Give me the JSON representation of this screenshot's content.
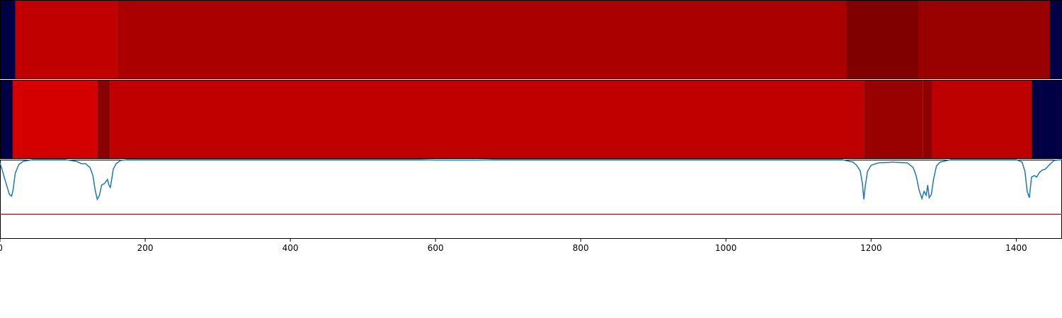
{
  "chart_data": [
    {
      "type": "heatmap",
      "xlim": [
        0,
        1463
      ],
      "edges": [
        0,
        21,
        161,
        1166,
        1265,
        1446,
        1463
      ],
      "colors": [
        "#000044",
        "#c00000",
        "#aa0000",
        "#800000",
        "#990000",
        "#000044"
      ]
    },
    {
      "type": "heatmap",
      "xlim": [
        0,
        1463
      ],
      "edges": [
        0,
        17.5,
        134,
        152,
        1190,
        1271,
        1284,
        1421,
        1463
      ],
      "colors": [
        "#000044",
        "#d40000",
        "#880000",
        "#c00000",
        "#990000",
        "#8f0000",
        "#bd0000",
        "#000044"
      ]
    },
    {
      "type": "line",
      "xlim": [
        0,
        1463
      ],
      "ylim": [
        0,
        1
      ],
      "xticks": [
        0,
        200,
        400,
        600,
        800,
        1000,
        1200,
        1400
      ],
      "hline": {
        "value": 0.31,
        "color": "#e41a1c"
      },
      "series": [
        {
          "color": "#1f77b4",
          "x": [
            0,
            3,
            8,
            13,
            16,
            18,
            21,
            26,
            32,
            45,
            90,
            105,
            112,
            118,
            124,
            128,
            131,
            134,
            137,
            140,
            144,
            148,
            150,
            152,
            154,
            156,
            160,
            166,
            175,
            580,
            600,
            660,
            680,
            1160,
            1175,
            1180,
            1185,
            1188,
            1190,
            1192,
            1195,
            1200,
            1210,
            1230,
            1250,
            1258,
            1262,
            1266,
            1270,
            1273,
            1276,
            1278,
            1280,
            1283,
            1286,
            1290,
            1295,
            1310,
            1400,
            1408,
            1412,
            1415,
            1418,
            1421,
            1425,
            1428,
            1432,
            1436,
            1440,
            1446,
            1452,
            1463
          ],
          "values": [
            0.96,
            0.87,
            0.71,
            0.56,
            0.54,
            0.62,
            0.83,
            0.94,
            0.98,
            1.0,
            1.0,
            0.98,
            0.95,
            0.95,
            0.9,
            0.8,
            0.62,
            0.5,
            0.55,
            0.68,
            0.7,
            0.75,
            0.68,
            0.65,
            0.76,
            0.88,
            0.95,
            0.99,
            1.0,
            1.0,
            0.995,
            0.995,
            1.0,
            1.0,
            0.97,
            0.93,
            0.86,
            0.7,
            0.5,
            0.67,
            0.85,
            0.93,
            0.96,
            0.97,
            0.96,
            0.9,
            0.8,
            0.62,
            0.51,
            0.6,
            0.55,
            0.68,
            0.52,
            0.56,
            0.75,
            0.92,
            0.97,
            1.0,
            1.0,
            0.97,
            0.85,
            0.6,
            0.52,
            0.78,
            0.8,
            0.78,
            0.84,
            0.87,
            0.88,
            0.94,
            0.99,
            1.0
          ]
        }
      ]
    }
  ]
}
